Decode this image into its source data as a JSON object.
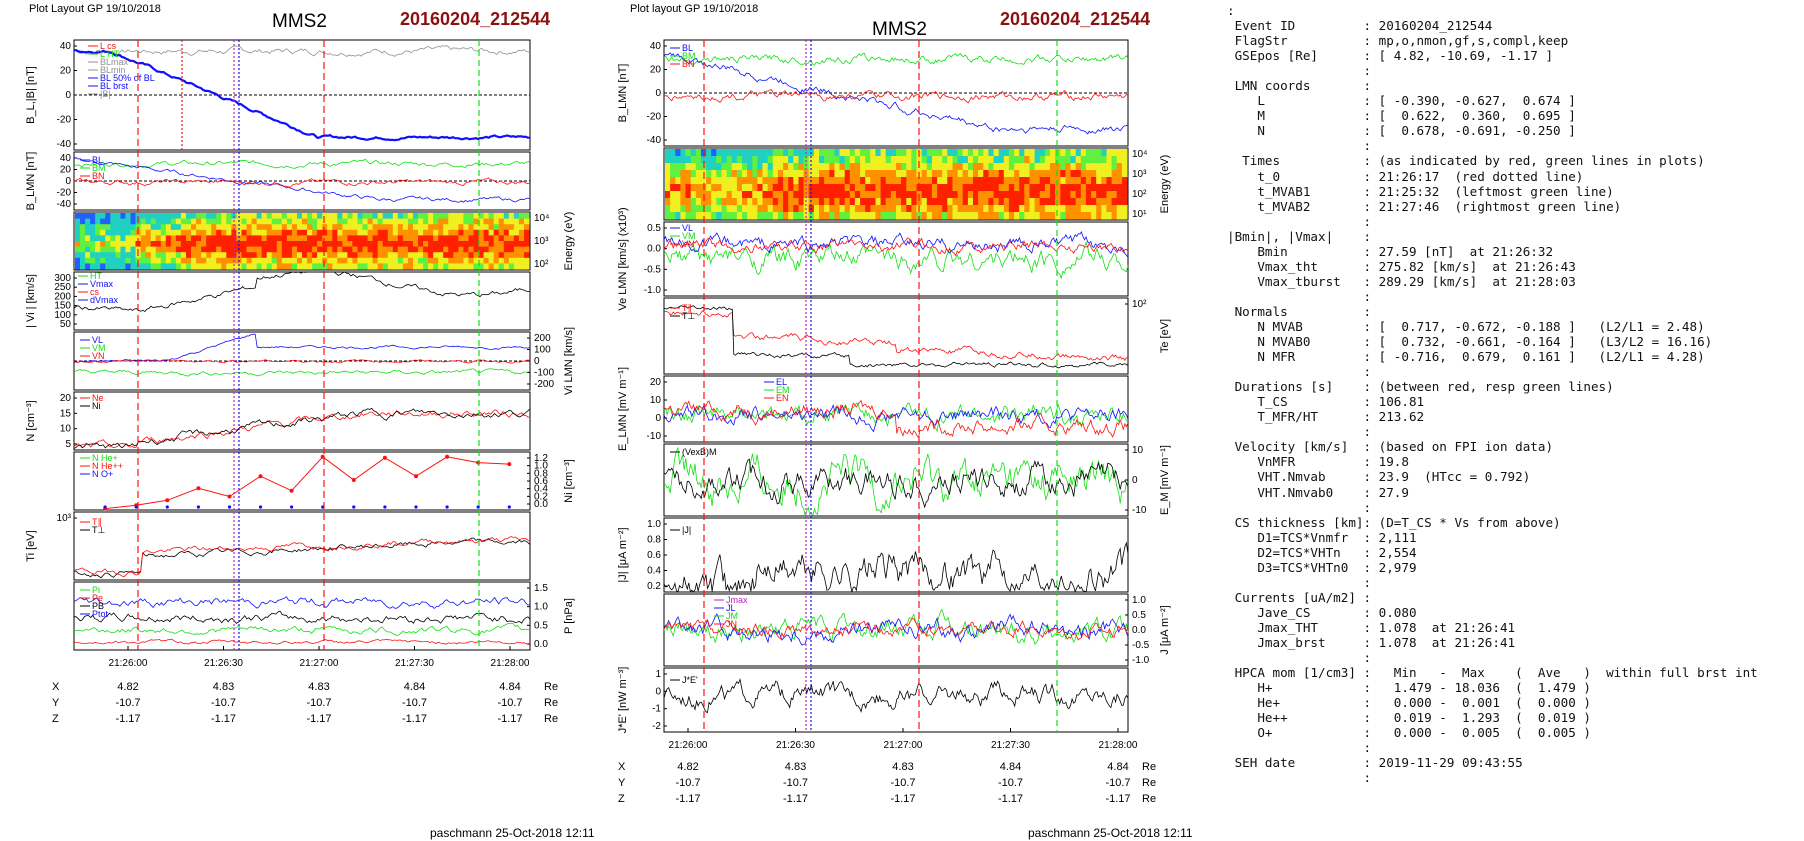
{
  "left": {
    "header": "Plot Layout GP 19/10/2018",
    "spacecraft": "MMS2",
    "event": "20160204_212544",
    "footer": "paschmann 25-Oct-2018 12:11"
  },
  "right": {
    "header": "Plot layout GP 19/10/2018",
    "spacecraft": "MMS2",
    "event": "20160204_212544",
    "footer": "paschmann 25-Oct-2018 12:11"
  },
  "time_ticks": [
    "21:26:00",
    "21:26:30",
    "21:27:00",
    "21:27:30",
    "21:28:00"
  ],
  "positions": {
    "rows": [
      {
        "name": "X",
        "values": [
          "4.82",
          "4.83",
          "4.83",
          "4.84",
          "4.84"
        ],
        "unit": "Re"
      },
      {
        "name": "Y",
        "values": [
          "-10.7",
          "-10.7",
          "-10.7",
          "-10.7",
          "-10.7"
        ],
        "unit": "Re"
      },
      {
        "name": "Z",
        "values": [
          "-1.17",
          "-1.17",
          "-1.17",
          "-1.17",
          "-1.17"
        ],
        "unit": "Re"
      }
    ]
  },
  "colors": {
    "red": "#ff1010",
    "green": "#10e010",
    "blue": "#1010ff",
    "black": "#000000",
    "magenta": "#c020c0",
    "gray": "#909090",
    "dred": "#8b1010"
  },
  "chart_data": [
    {
      "type": "line",
      "panel": "B_L |B|",
      "ylabel": "B_L,|B| [nT]",
      "ylim": [
        -50,
        50
      ],
      "yticks": [
        "40",
        "20",
        "0",
        "-20",
        "-40"
      ],
      "legend": [
        "L cs",
        "L HT",
        "BLmax",
        "BLmin",
        "BL 50% of BL",
        "BL brst",
        "|B|"
      ],
      "x": [
        0,
        10,
        20,
        30,
        40,
        50,
        60,
        70,
        80,
        90,
        100,
        110,
        120,
        130
      ],
      "series": [
        {
          "name": "|B|",
          "values": [
            42,
            41,
            40,
            40,
            41,
            40,
            41,
            42,
            41,
            40,
            42,
            41,
            42,
            41
          ]
        },
        {
          "name": "B_L",
          "values": [
            39,
            36,
            12,
            -8,
            -18,
            -22,
            -24,
            -28,
            -31,
            -30,
            -34,
            -36,
            -38,
            -39
          ]
        }
      ]
    },
    {
      "type": "line",
      "panel": "B_LMN",
      "ylabel": "B_LMN [nT]",
      "ylim": [
        -50,
        50
      ],
      "yticks": [
        "40",
        "20",
        "0",
        "-20",
        "-40"
      ],
      "legend": [
        "BL",
        "BM",
        "BN"
      ]
    },
    {
      "type": "heatmap",
      "panel": "ion energy spectrogram",
      "ylabel": "Energy (eV)",
      "yticks": [
        "10⁴",
        "10³",
        "10²"
      ]
    },
    {
      "type": "line",
      "panel": "|Vi|",
      "ylabel": "| Vi | [km/s]",
      "ylim": [
        0,
        300
      ],
      "yticks": [
        "300",
        "250",
        "200",
        "150",
        "100",
        "50"
      ],
      "legend": [
        "HT",
        "Vmax",
        "cs",
        "dVmax"
      ]
    },
    {
      "type": "line",
      "panel": "Vi LMN",
      "ylabel": "Vi LMN [km/s]",
      "yticks": [
        "200",
        "100",
        "0",
        "-100",
        "-200"
      ],
      "legend": [
        "VL",
        "VM",
        "VN"
      ]
    },
    {
      "type": "line",
      "panel": "N",
      "ylabel": "N [cm⁻³]",
      "ylim": [
        0,
        22
      ],
      "yticks": [
        "20",
        "15",
        "10",
        "5"
      ],
      "legend": [
        "Ne",
        "Ni"
      ]
    },
    {
      "type": "line",
      "panel": "HPCA N",
      "ylabel": "Ni [cm⁻³]",
      "ylim": [
        0,
        1.2
      ],
      "yticks": [
        "1.2",
        "1.0",
        "0.8",
        "0.6",
        "0.4",
        "0.2",
        "0.0"
      ],
      "legend": [
        "N He+",
        "N He++",
        "N O+"
      ],
      "x": [
        15,
        30,
        45,
        60,
        75,
        90,
        105,
        120,
        135,
        150,
        165,
        180,
        195,
        210
      ],
      "series": [
        {
          "name": "N He++",
          "values": [
            0.03,
            0.1,
            0.2,
            0.45,
            0.28,
            0.7,
            0.4,
            1.1,
            0.62,
            1.08,
            0.7,
            1.1,
            0.98,
            0.95
          ]
        }
      ]
    },
    {
      "type": "line",
      "panel": "Ti",
      "ylabel": "Ti [eV]",
      "yticks": [
        "10³"
      ],
      "legend": [
        "T∥",
        "T⊥"
      ]
    },
    {
      "type": "line",
      "panel": "P",
      "ylabel": "P [nPa]",
      "ylim": [
        0,
        1.7
      ],
      "yticks": [
        "1.5",
        "1.0",
        "0.5",
        "0.0"
      ],
      "legend": [
        "Pi",
        "Pe",
        "PB",
        "Ptot"
      ]
    },
    {
      "type": "line",
      "panel": "B_LMN (right)",
      "ylabel": "B_LMN [nT]",
      "ylim": [
        -50,
        50
      ],
      "yticks": [
        "40",
        "20",
        "0",
        "-20",
        "-40"
      ],
      "legend": [
        "BL",
        "BM",
        "BN"
      ]
    },
    {
      "type": "heatmap",
      "panel": "electron spectrogram",
      "ylabel": "Energy (eV)",
      "yticks": [
        "10⁴",
        "10³",
        "10²",
        "10¹"
      ]
    },
    {
      "type": "line",
      "panel": "Ve LMN",
      "ylabel": "Ve LMN [km/s] (x10³)",
      "yticks": [
        "0.5",
        "0.0",
        "-0.5",
        "-1.0"
      ],
      "legend": [
        "VL",
        "VM",
        "VN"
      ]
    },
    {
      "type": "line",
      "panel": "Te",
      "ylabel": "Te [eV]",
      "yticks": [
        "10²"
      ],
      "legend": [
        "T∥",
        "T⊥"
      ]
    },
    {
      "type": "line",
      "panel": "E LMN",
      "ylabel": "E_LMN [mV m⁻¹]",
      "yticks": [
        "20",
        "10",
        "0",
        "-10"
      ],
      "legend": [
        "EL",
        "EM",
        "EN"
      ]
    },
    {
      "type": "line",
      "panel": "EM",
      "ylabel": "E_M [mV m⁻¹]",
      "yticks": [
        "10",
        "0",
        "-10"
      ],
      "legend": [
        "(VexB)M"
      ]
    },
    {
      "type": "line",
      "panel": "|J|",
      "ylabel": "|J| [μA m⁻²]",
      "ylim": [
        0,
        1.0
      ],
      "yticks": [
        "1.0",
        "0.8",
        "0.6",
        "0.4",
        "0.2"
      ],
      "legend": [
        "|J|"
      ]
    },
    {
      "type": "line",
      "panel": "J LMN",
      "ylabel": "J [μA m⁻²]",
      "yticks": [
        "1.0",
        "0.5",
        "0.0",
        "-0.5",
        "-1.0"
      ],
      "legend": [
        "Jmax",
        "JL",
        "JM",
        "JN"
      ]
    },
    {
      "type": "line",
      "panel": "J·E'",
      "ylabel": "J*E' [nW m⁻³]",
      "yticks": [
        "1",
        "0",
        "-1",
        "-2"
      ],
      "legend": [
        "J*E'"
      ]
    }
  ],
  "summary": [
    ":",
    " Event ID         : 20160204_212544",
    " FlagStr          : mp,o,nmon,gf,s,compl,keep",
    " GSEpos [Re]      : [ 4.82, -10.69, -1.17 ]",
    "                  :",
    " LMN coords       :",
    "    L             : [ -0.390, -0.627,  0.674 ]",
    "    M             : [  0.622,  0.360,  0.695 ]",
    "    N             : [  0.678, -0.691, -0.250 ]",
    "                  :",
    "  Times           : (as indicated by red, green lines in plots)",
    "    t_0           : 21:26:17  (red dotted line)",
    "    t_MVAB1       : 21:25:32  (leftmost green line)",
    "    t_MVAB2       : 21:27:46  (rightmost green line)",
    "                  :",
    "|Bmin|, |Vmax|    :",
    "    Bmin          : 27.59 [nT]  at 21:26:32",
    "    Vmax_tht      : 275.82 [km/s]  at 21:26:43",
    "    Vmax_tburst   : 289.29 [km/s]  at 21:28:03",
    "                  :",
    " Normals          :",
    "    N MVAB        : [  0.717, -0.672, -0.188 ]   (L2/L1 = 2.48)",
    "    N MVAB0       : [  0.732, -0.661, -0.164 ]   (L3/L2 = 16.16)",
    "    N MFR         : [ -0.716,  0.679,  0.161 ]   (L2/L1 = 4.28)",
    "                  :",
    " Durations [s]    : (between red, resp green lines)",
    "    T_CS          : 106.81",
    "    T_MFR/HT      : 213.62",
    "                  :",
    " Velocity [km/s]  : (based on FPI ion data)",
    "    VnMFR         : 19.8",
    "    VHT.Nmvab     : 23.9  (HTcc = 0.792)",
    "    VHT.Nmvab0    : 27.9",
    "                  :",
    " CS thickness [km]: (D=T_CS * Vs from above)",
    "    D1=TCS*Vnmfr  : 2,111",
    "    D2=TCS*VHTn   : 2,554",
    "    D3=TCS*VHTn0  : 2,979",
    "                  :",
    " Currents [uA/m2] :",
    "    Jave_CS       : 0.080",
    "    Jmax_THT      : 1.078  at 21:26:41",
    "    Jmax_brst     : 1.078  at 21:26:41",
    "                  :",
    " HPCA mom [1/cm3] :   Min   -  Max    (  Ave   )  within full brst int",
    "    H+            :   1.479 - 18.036  (  1.479 )",
    "    He+           :   0.000 -  0.001  (  0.000 )",
    "    He++          :   0.019 -  1.293  (  0.019 )",
    "    O+            :   0.000 -  0.005  (  0.005 )",
    "                  :",
    " SEH date         : 2019-11-29 09:43:55",
    "                  :"
  ]
}
